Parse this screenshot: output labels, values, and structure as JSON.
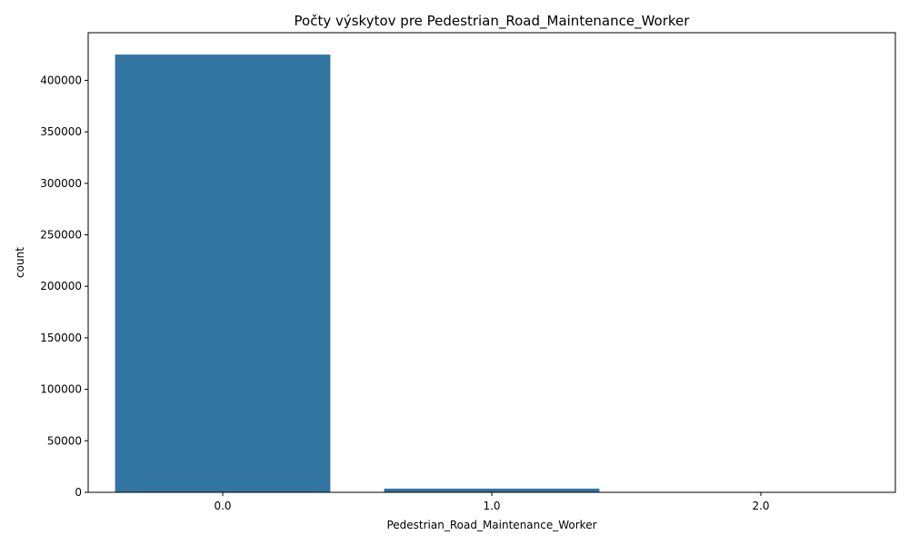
{
  "chart_data": {
    "type": "bar",
    "title": "Počty výskytov pre Pedestrian_Road_Maintenance_Worker",
    "xlabel": "Pedestrian_Road_Maintenance_Worker",
    "ylabel": "count",
    "categories": [
      "0.0",
      "1.0",
      "2.0"
    ],
    "values": [
      425000,
      3600,
      150
    ],
    "ylim": [
      0,
      446250
    ],
    "yticks": [
      0,
      50000,
      100000,
      150000,
      200000,
      250000,
      300000,
      350000,
      400000
    ],
    "ytick_labels": [
      "0",
      "50000",
      "100000",
      "150000",
      "200000",
      "250000",
      "300000",
      "350000",
      "400000"
    ],
    "grid": false,
    "legend": "none",
    "colors": {
      "bar": "#3274a1",
      "axis": "#000000",
      "background": "#ffffff"
    }
  }
}
